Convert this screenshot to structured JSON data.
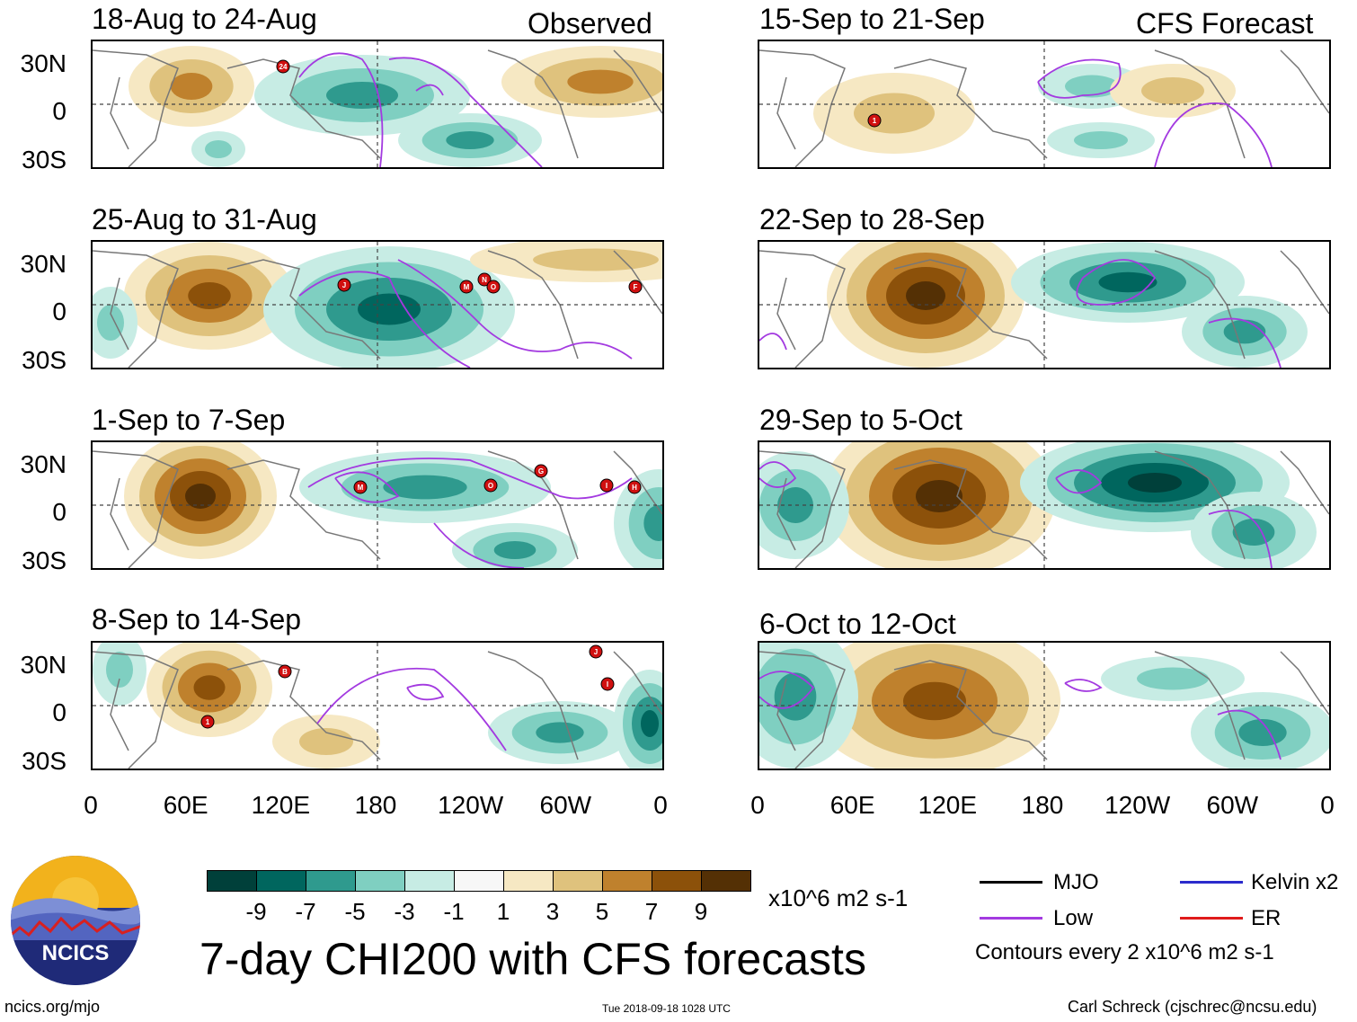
{
  "header": {
    "observed_label": "Observed",
    "forecast_label": "CFS Forecast"
  },
  "panels": {
    "observed": [
      {
        "title": "18-Aug to 24-Aug",
        "storms": [
          "24"
        ]
      },
      {
        "title": "25-Aug to 31-Aug",
        "storms": [
          "J",
          "M",
          "N",
          "O",
          "F"
        ]
      },
      {
        "title": "1-Sep to 7-Sep",
        "storms": [
          "M",
          "O",
          "G",
          "I",
          "H"
        ]
      },
      {
        "title": "8-Sep to 14-Sep",
        "storms": [
          "B",
          "1",
          "J",
          "I"
        ]
      }
    ],
    "forecast": [
      {
        "title": "15-Sep to 21-Sep",
        "storms": [
          "1"
        ]
      },
      {
        "title": "22-Sep to 28-Sep",
        "storms": []
      },
      {
        "title": "29-Sep to 5-Oct",
        "storms": []
      },
      {
        "title": "6-Oct to 12-Oct",
        "storms": []
      }
    ]
  },
  "axes": {
    "lat_labels": [
      "30N",
      "0",
      "30S"
    ],
    "lon_labels": [
      "0",
      "60E",
      "120E",
      "180",
      "120W",
      "60W",
      "0"
    ]
  },
  "colorbar": {
    "colors": [
      "#00403a",
      "#00665e",
      "#2f9a8e",
      "#7fcfc1",
      "#c7ece4",
      "#f7f7f7",
      "#f6e8c3",
      "#dfc27d",
      "#bf812d",
      "#8c510a",
      "#543005"
    ],
    "labels": [
      "-9",
      "-7",
      "-5",
      "-3",
      "-1",
      "1",
      "3",
      "5",
      "7",
      "9"
    ],
    "units": "x10^6 m2 s-1"
  },
  "legend": {
    "mjo": {
      "label": "MJO",
      "color": "#000000"
    },
    "low": {
      "label": "Low",
      "color": "#a33ae0"
    },
    "kelvin": {
      "label": "Kelvin x2",
      "color": "#2b2bcc"
    },
    "er": {
      "label": "ER",
      "color": "#e01b1b"
    },
    "contours_note": "Contours every 2 x10^6 m2 s-1"
  },
  "footer": {
    "main_title": "7-day CHI200 with CFS forecasts",
    "url": "ncics.org/mjo",
    "timestamp": "Tue 2018-09-18 1028 UTC",
    "author": "Carl Schreck (cjschrec@ncsu.edu)",
    "logo_text": "NCICS"
  }
}
